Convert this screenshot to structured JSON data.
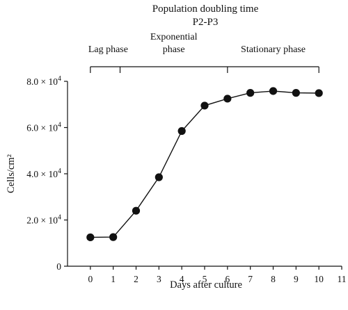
{
  "chart_data": {
    "type": "line",
    "title": "Population doubling time",
    "subtitle": "P2-P3",
    "xlabel": "Days after culture",
    "ylabel": "Cells/cm²",
    "x": [
      0,
      1,
      2,
      3,
      4,
      5,
      6,
      7,
      8,
      9,
      10
    ],
    "series": [
      {
        "values": [
          12500,
          12600,
          24000,
          38500,
          58500,
          69500,
          72500,
          75000,
          75800,
          75000,
          74900
        ]
      }
    ],
    "xlim": [
      -1,
      11
    ],
    "ylim": [
      0,
      80000
    ],
    "xticks": [
      0,
      1,
      2,
      3,
      4,
      5,
      6,
      7,
      8,
      9,
      10,
      11
    ],
    "yticks": [
      {
        "value": 0,
        "label": "0",
        "mantissa": "",
        "power": ""
      },
      {
        "value": 20000,
        "label": "2.0 × 10^4",
        "mantissa": "2.0 × 10",
        "power": "4"
      },
      {
        "value": 40000,
        "label": "4.0 × 10^4",
        "mantissa": "4.0 × 10",
        "power": "4"
      },
      {
        "value": 60000,
        "label": "6.0 × 10^4",
        "mantissa": "6.0 × 10",
        "power": "4"
      },
      {
        "value": 80000,
        "label": "8.0 × 10^4",
        "mantissa": "8.0 × 10",
        "power": "4"
      }
    ],
    "phases": [
      {
        "name": "Lag phase",
        "lines": [
          "Lag phase"
        ],
        "start": 0,
        "end": 1.3
      },
      {
        "name": "Exponential phase",
        "lines": [
          "Exponential",
          "phase"
        ],
        "start": 1.3,
        "end": 6
      },
      {
        "name": "Stationary phase",
        "lines": [
          "Stationary phase"
        ],
        "start": 6,
        "end": 10
      }
    ],
    "grid": false,
    "marker": "filled-circle",
    "color": "#111111"
  }
}
